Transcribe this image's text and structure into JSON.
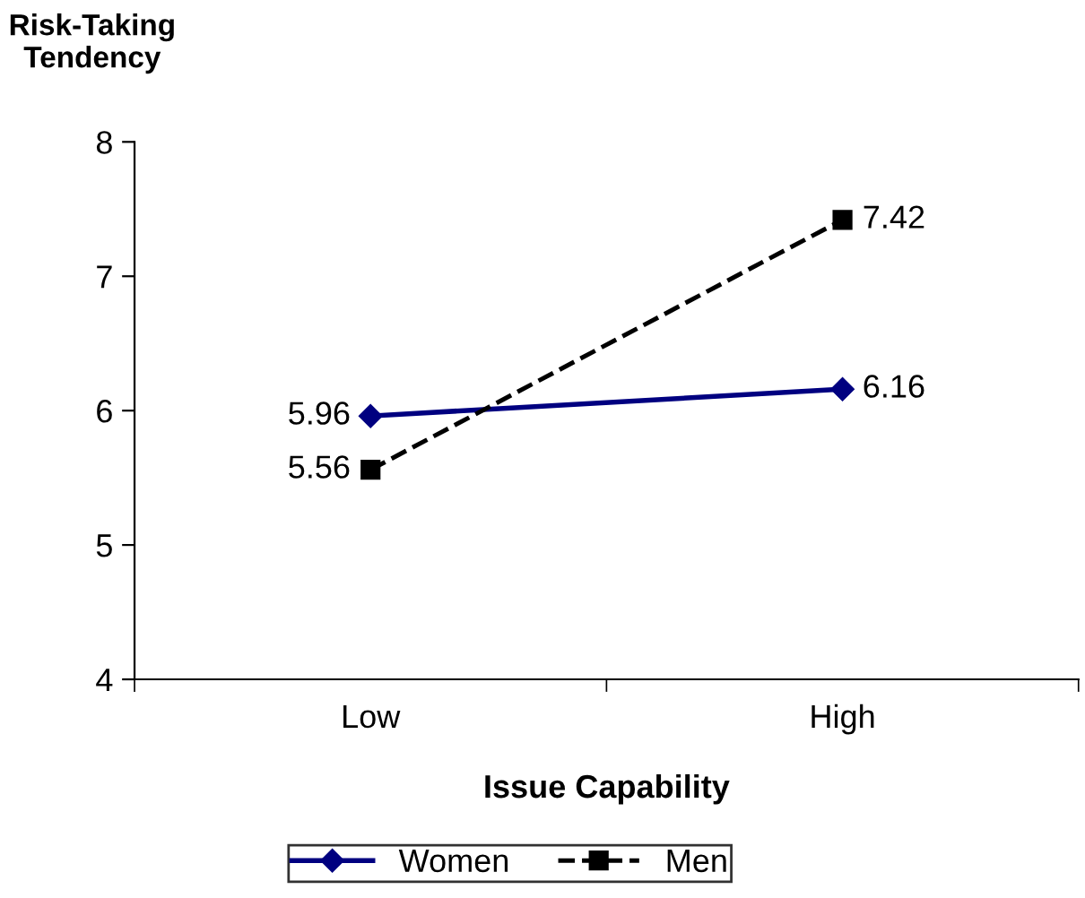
{
  "chart_data": {
    "type": "line",
    "xlabel": "Issue Capability",
    "ylabel": "Risk-Taking\nTendency",
    "categories": [
      "Low",
      "High"
    ],
    "series": [
      {
        "name": "Women",
        "color": "#000080",
        "values": [
          5.96,
          6.16
        ],
        "marker": "diamond",
        "line_style": "solid"
      },
      {
        "name": "Men",
        "color": "#000000",
        "values": [
          5.56,
          7.42
        ],
        "marker": "square",
        "line_style": "dashed"
      }
    ],
    "ylim": [
      4,
      8
    ],
    "yticks": [
      4,
      5,
      6,
      7,
      8
    ],
    "grid": false,
    "legend": "bottom",
    "data_labels": true
  }
}
